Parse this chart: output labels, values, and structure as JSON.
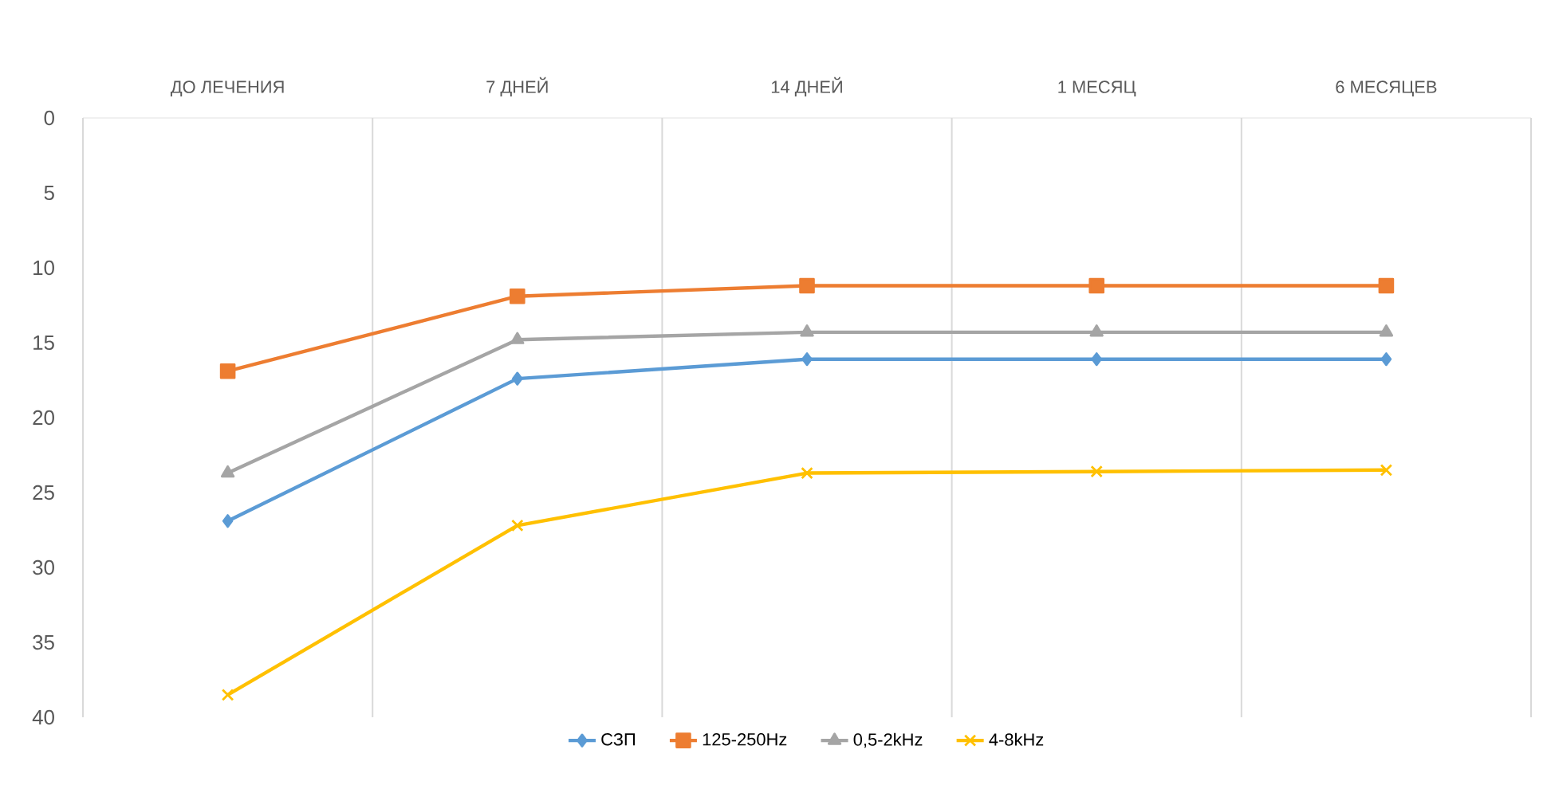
{
  "chart_data": {
    "type": "line",
    "categories": [
      "ДО ЛЕЧЕНИЯ",
      "7 ДНЕЙ",
      "14 ДНЕЙ",
      "1 МЕСЯЦ",
      "6 МЕСЯЦЕВ"
    ],
    "series": [
      {
        "name": "СЗП",
        "color": "#5b9bd5",
        "marker": "diamond",
        "values": [
          26.9,
          17.4,
          16.1,
          16.1,
          16.1
        ]
      },
      {
        "name": "125-250Hz",
        "color": "#ed7d31",
        "marker": "square",
        "values": [
          16.9,
          11.9,
          11.2,
          11.2,
          11.2
        ]
      },
      {
        "name": "0,5-2kHz",
        "color": "#a5a5a5",
        "marker": "triangle",
        "values": [
          23.7,
          14.8,
          14.3,
          14.3,
          14.3
        ]
      },
      {
        "name": "4-8kHz",
        "color": "#ffc000",
        "marker": "cross",
        "values": [
          38.5,
          27.2,
          23.7,
          23.6,
          23.5
        ]
      }
    ],
    "ylim": [
      40,
      0
    ],
    "yticks": [
      0,
      5,
      10,
      15,
      20,
      25,
      30,
      35,
      40
    ],
    "grid": "x",
    "legend": "bottom"
  }
}
